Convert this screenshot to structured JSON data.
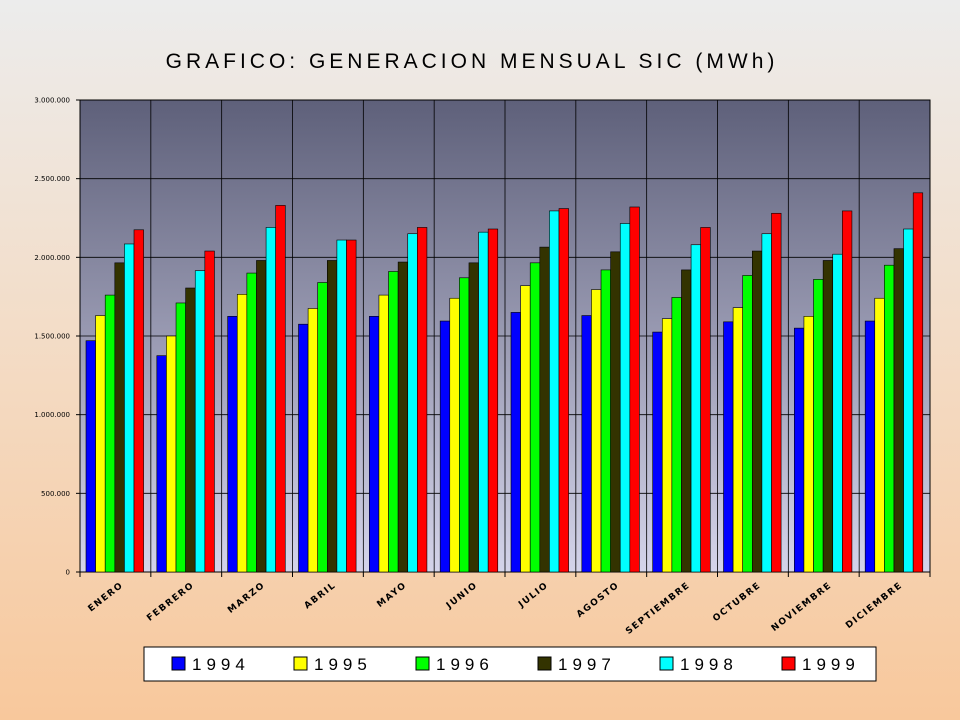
{
  "chart_data": {
    "type": "bar",
    "title": "GRAFICO: GENERACION MENSUAL SIC (MWh)",
    "categories": [
      "ENERO",
      "FEBRERO",
      "MARZO",
      "ABRIL",
      "MAYO",
      "JUNIO",
      "JULIO",
      "AGOSTO",
      "SEPTIEMBRE",
      "OCTUBRE",
      "NOVIEMBRE",
      "DICIEMBRE"
    ],
    "yticks": [
      "0",
      "500.000",
      "1.000.000",
      "1.500.000",
      "2.000.000",
      "2.500.000",
      "3.000.000"
    ],
    "ylim": [
      0,
      3000000
    ],
    "grid": true,
    "legend_position": "bottom",
    "series": [
      {
        "name": "1994",
        "color": "#0000ff",
        "values": [
          1470000,
          1375000,
          1625000,
          1575000,
          1625000,
          1595000,
          1650000,
          1630000,
          1525000,
          1590000,
          1550000,
          1595000
        ]
      },
      {
        "name": "1995",
        "color": "#ffff00",
        "values": [
          1630000,
          1500000,
          1765000,
          1675000,
          1760000,
          1740000,
          1820000,
          1795000,
          1610000,
          1680000,
          1625000,
          1740000
        ]
      },
      {
        "name": "1996",
        "color": "#00ff00",
        "values": [
          1760000,
          1710000,
          1900000,
          1840000,
          1910000,
          1870000,
          1965000,
          1920000,
          1745000,
          1885000,
          1860000,
          1950000
        ]
      },
      {
        "name": "1997",
        "color": "#333300",
        "values": [
          1965000,
          1805000,
          1980000,
          1980000,
          1970000,
          1965000,
          2065000,
          2035000,
          1920000,
          2040000,
          1980000,
          2055000
        ]
      },
      {
        "name": "1998",
        "color": "#00ffff",
        "values": [
          2085000,
          1915000,
          2190000,
          2110000,
          2150000,
          2160000,
          2295000,
          2215000,
          2080000,
          2150000,
          2020000,
          2180000
        ]
      },
      {
        "name": "1999",
        "color": "#ff0000",
        "values": [
          2175000,
          2040000,
          2330000,
          2110000,
          2190000,
          2180000,
          2310000,
          2320000,
          2190000,
          2280000,
          2295000,
          2410000
        ]
      }
    ]
  }
}
